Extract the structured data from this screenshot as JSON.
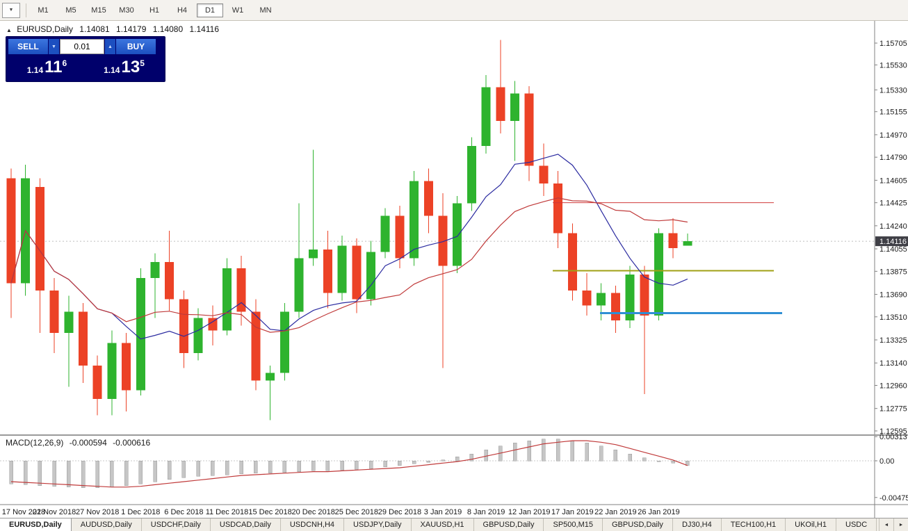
{
  "toolbar": {
    "timeframes": [
      "M1",
      "M5",
      "M15",
      "M30",
      "H1",
      "H4",
      "D1",
      "W1",
      "MN"
    ],
    "active_timeframe": "D1"
  },
  "icons": {
    "caret_down": "▼",
    "caret_up": "▲",
    "triangle_up": "▲",
    "arrow_left": "◄",
    "arrow_right": "►"
  },
  "chart": {
    "symbol_label": "EURUSD,Daily",
    "ohlc": {
      "open": "1.14081",
      "high": "1.14179",
      "low": "1.14080",
      "close": "1.14116"
    },
    "current_price": "1.14116"
  },
  "trade_panel": {
    "sell_label": "SELL",
    "buy_label": "BUY",
    "volume": "0.01",
    "sell_price": {
      "prefix": "1.14",
      "big": "11",
      "sup": "6"
    },
    "buy_price": {
      "prefix": "1.14",
      "big": "13",
      "sup": "5"
    }
  },
  "macd": {
    "label": "MACD(12,26,9)",
    "value1": "-0.000594",
    "value2": "-0.000616",
    "axis": [
      "0.00313",
      "0.00",
      "-0.00475"
    ]
  },
  "price_axis": [
    "1.15705",
    "1.15530",
    "1.15330",
    "1.15155",
    "1.14970",
    "1.14790",
    "1.14605",
    "1.14425",
    "1.14240",
    "1.14055",
    "1.13875",
    "1.13690",
    "1.13510",
    "1.13325",
    "1.13140",
    "1.12960",
    "1.12775",
    "1.12595"
  ],
  "tabbar": {
    "active_index": 0,
    "tabs": [
      "EURUSD,Daily",
      "AUDUSD,Daily",
      "USDCHF,Daily",
      "USDCAD,Daily",
      "USDCNH,H4",
      "USDJPY,Daily",
      "XAUUSD,H1",
      "GBPUSD,Daily",
      "SP500,M15",
      "GBPUSD,Daily",
      "DJ30,H4",
      "TECH100,H1",
      "UKOil,H1",
      "USDC"
    ]
  },
  "chart_data": {
    "type": "candlestick",
    "symbol": "EURUSD",
    "timeframe": "Daily",
    "ylim": [
      1.12595,
      1.15705
    ],
    "colors": {
      "bull": "#2eb32e",
      "bear": "#ec4226"
    },
    "layout": {
      "plot_top": 30,
      "axis_x": 1258,
      "date_axis_y": 726,
      "date_label_y": 740,
      "macd_sep_y": 626,
      "macd_zero_y": 663,
      "macd_scale": 9e-05,
      "candle_x0": 16,
      "candle_dx": 20.7,
      "candle_w": 13,
      "price_map": {
        "p1": 1.15705,
        "y1": 62,
        "p2": 1.12595,
        "y2": 620
      }
    },
    "label_every": 3,
    "date_labels": [
      "17 Nov 2018",
      "22 Nov 2018",
      "27 Nov 2018",
      "1 Dec 2018",
      "6 Dec 2018",
      "11 Dec 2018",
      "15 Dec 2018",
      "20 Dec 2018",
      "25 Dec 2018",
      "29 Dec 2018",
      "3 Jan 2019",
      "8 Jan 2019",
      "12 Jan 2019",
      "17 Jan 2019",
      "22 Jan 2019",
      "26 Jan 2019"
    ],
    "candles": [
      [
        1.1462,
        1.147,
        1.135,
        1.1378
      ],
      [
        1.1378,
        1.1473,
        1.1368,
        1.1462
      ],
      [
        1.1455,
        1.1462,
        1.1338,
        1.1372
      ],
      [
        1.1372,
        1.1382,
        1.1322,
        1.1338
      ],
      [
        1.1338,
        1.1368,
        1.1295,
        1.1355
      ],
      [
        1.1355,
        1.1362,
        1.1298,
        1.1312
      ],
      [
        1.1312,
        1.132,
        1.1272,
        1.1285
      ],
      [
        1.1285,
        1.134,
        1.1272,
        1.133
      ],
      [
        1.133,
        1.1338,
        1.1275,
        1.1292
      ],
      [
        1.1292,
        1.139,
        1.1288,
        1.1382
      ],
      [
        1.1382,
        1.1402,
        1.135,
        1.1395
      ],
      [
        1.1395,
        1.142,
        1.1356,
        1.1365
      ],
      [
        1.1365,
        1.1372,
        1.131,
        1.1322
      ],
      [
        1.1322,
        1.1358,
        1.1316,
        1.135
      ],
      [
        1.135,
        1.136,
        1.1328,
        1.134
      ],
      [
        1.134,
        1.1398,
        1.1336,
        1.139
      ],
      [
        1.139,
        1.14,
        1.1344,
        1.1355
      ],
      [
        1.1355,
        1.1365,
        1.1292,
        1.13
      ],
      [
        1.13,
        1.1312,
        1.1268,
        1.1306
      ],
      [
        1.1306,
        1.1362,
        1.13,
        1.1355
      ],
      [
        1.1355,
        1.1442,
        1.135,
        1.1398
      ],
      [
        1.1398,
        1.1485,
        1.1392,
        1.1405
      ],
      [
        1.1405,
        1.142,
        1.1358,
        1.137
      ],
      [
        1.137,
        1.1416,
        1.1364,
        1.1408
      ],
      [
        1.1408,
        1.1414,
        1.1354,
        1.1365
      ],
      [
        1.1365,
        1.1412,
        1.136,
        1.1403
      ],
      [
        1.1403,
        1.1438,
        1.1398,
        1.1432
      ],
      [
        1.1432,
        1.144,
        1.139,
        1.1398
      ],
      [
        1.1398,
        1.1468,
        1.1392,
        1.146
      ],
      [
        1.146,
        1.147,
        1.1418,
        1.1432
      ],
      [
        1.1432,
        1.145,
        1.131,
        1.1392
      ],
      [
        1.1392,
        1.1448,
        1.1386,
        1.1442
      ],
      [
        1.1442,
        1.1495,
        1.1436,
        1.1488
      ],
      [
        1.1488,
        1.1545,
        1.1482,
        1.1535
      ],
      [
        1.1535,
        1.1573,
        1.1498,
        1.1508
      ],
      [
        1.1508,
        1.154,
        1.1476,
        1.153
      ],
      [
        1.153,
        1.1536,
        1.146,
        1.1472
      ],
      [
        1.1472,
        1.149,
        1.1448,
        1.1458
      ],
      [
        1.1458,
        1.1468,
        1.1406,
        1.1418
      ],
      [
        1.1418,
        1.1426,
        1.1364,
        1.1372
      ],
      [
        1.1372,
        1.1386,
        1.1352,
        1.136
      ],
      [
        1.136,
        1.1378,
        1.1348,
        1.137
      ],
      [
        1.137,
        1.1376,
        1.1338,
        1.1348
      ],
      [
        1.1348,
        1.1392,
        1.1342,
        1.1385
      ],
      [
        1.1385,
        1.1392,
        1.1289,
        1.1352
      ],
      [
        1.1352,
        1.1422,
        1.1348,
        1.1418
      ],
      [
        1.1418,
        1.143,
        1.1398,
        1.1406
      ],
      [
        1.14081,
        1.14179,
        1.1408,
        1.14116
      ]
    ],
    "moving_averages": [
      {
        "period": 8,
        "color": "#2b2ba0"
      },
      {
        "period": 16,
        "color": "#c03a3a"
      }
    ],
    "hlines": [
      {
        "name": "resistance-red",
        "price": 1.14425,
        "color": "#d03a3a",
        "width": 1,
        "x1": 795,
        "x2": 1113
      },
      {
        "name": "support-olive",
        "price": 1.1388,
        "color": "#a0a015",
        "width": 2,
        "x1": 795,
        "x2": 1113
      },
      {
        "name": "support-blue",
        "price": 1.1354,
        "color": "#2f8fd4",
        "width": 3,
        "x1": 863,
        "x2": 1125
      }
    ],
    "macd": {
      "main": [
        -0.003,
        -0.0031,
        -0.0032,
        -0.0033,
        -0.0034,
        -0.0035,
        -0.0035,
        -0.0034,
        -0.0032,
        -0.003,
        -0.0027,
        -0.0024,
        -0.0022,
        -0.002,
        -0.0019,
        -0.0018,
        -0.0017,
        -0.0016,
        -0.0016,
        -0.0015,
        -0.0014,
        -0.0013,
        -0.0013,
        -0.0012,
        -0.0011,
        -0.001,
        -0.0008,
        -0.0006,
        -0.0004,
        -0.0002,
        0.0001,
        0.0005,
        0.0009,
        0.0014,
        0.0019,
        0.0023,
        0.0026,
        0.0028,
        0.0028,
        0.0026,
        0.0023,
        0.0019,
        0.0014,
        0.0009,
        0.0004,
        0.0,
        -0.0003,
        -0.000594
      ],
      "signal": [
        -0.0027,
        -0.0028,
        -0.0029,
        -0.003,
        -0.0031,
        -0.0032,
        -0.0033,
        -0.0034,
        -0.0034,
        -0.0033,
        -0.0031,
        -0.0029,
        -0.0027,
        -0.0025,
        -0.0023,
        -0.0021,
        -0.0019,
        -0.0018,
        -0.0017,
        -0.0016,
        -0.0015,
        -0.0014,
        -0.0014,
        -0.0013,
        -0.0012,
        -0.0011,
        -0.001,
        -0.0009,
        -0.0007,
        -0.0005,
        -0.0003,
        -0.0001,
        0.0002,
        0.0006,
        0.001,
        0.0014,
        0.0018,
        0.0022,
        0.0024,
        0.0026,
        0.0026,
        0.0024,
        0.0021,
        0.0016,
        0.0011,
        0.0006,
        0.0001,
        -0.000616
      ]
    }
  }
}
